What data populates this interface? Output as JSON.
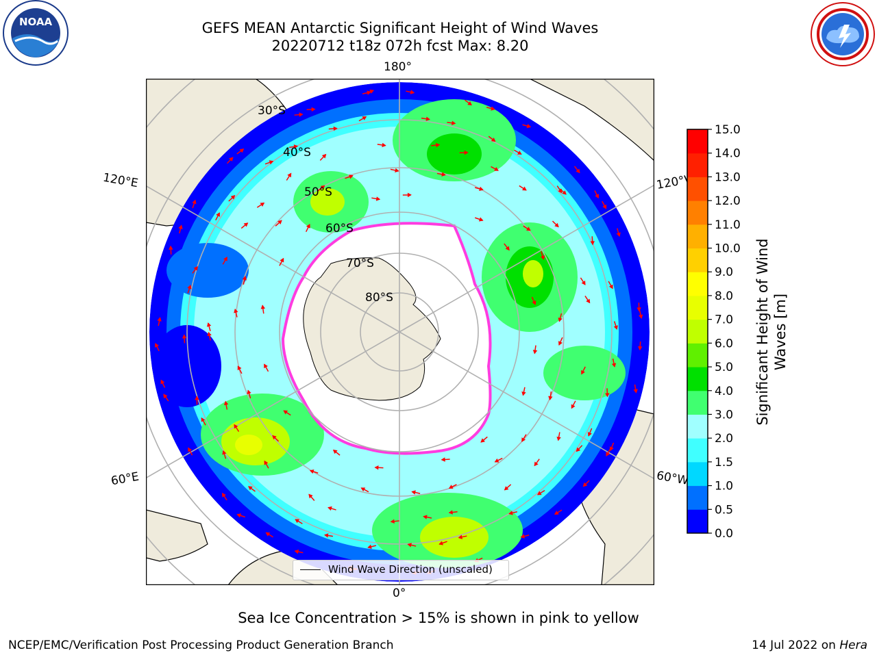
{
  "title": {
    "line1": "GEFS MEAN Antarctic Significant Height of Wind Waves",
    "line2": "20220712 t18z 072h fcst   Max: 8.20"
  },
  "logos": {
    "noaa_text": "NOAA",
    "noaa_ring": "NATIONAL OCEANIC AND ATMOSPHERIC ADMINISTRATION · U.S. DEPARTMENT OF COMMERCE",
    "nws_ring": "NATIONAL WEATHER SERVICE"
  },
  "map": {
    "projection": "south-polar-stereographic",
    "longitude_labels": {
      "top": "180°",
      "bottom": "0°",
      "upper_left": "120°E",
      "upper_right": "120°W",
      "lower_left": "60°E",
      "lower_right": "60°W"
    },
    "latitude_labels": [
      "30°S",
      "40°S",
      "50°S",
      "60°S",
      "70°S",
      "80°S"
    ],
    "legend_label": "Wind Wave Direction (unscaled)",
    "max_value": 8.2
  },
  "colorbar": {
    "label": "Significant Height of Wind Waves [m]",
    "label_lines": [
      "Significant Height of Wind",
      "Waves [m]"
    ],
    "ticks": [
      "0.0",
      "0.5",
      "1.0",
      "1.5",
      "2.0",
      "3.0",
      "4.0",
      "5.0",
      "6.0",
      "7.0",
      "8.0",
      "9.0",
      "10.0",
      "11.0",
      "12.0",
      "13.0",
      "14.0",
      "15.0"
    ],
    "colors": [
      "#0000ff",
      "#0070ff",
      "#00d8ff",
      "#40ffff",
      "#a0ffff",
      "#40ff70",
      "#00e000",
      "#60f000",
      "#c0ff00",
      "#e8ff00",
      "#ffff00",
      "#ffd000",
      "#ffb000",
      "#ff8000",
      "#ff5000",
      "#ff2000",
      "#ff0000"
    ]
  },
  "note": "Sea Ice Concentration > 15% is shown in pink to yellow",
  "footer": {
    "left": "NCEP/EMC/Verification Post Processing Product Generation Branch",
    "right_prefix": "14 Jul 2022 on ",
    "right_machine": "Hera"
  }
}
